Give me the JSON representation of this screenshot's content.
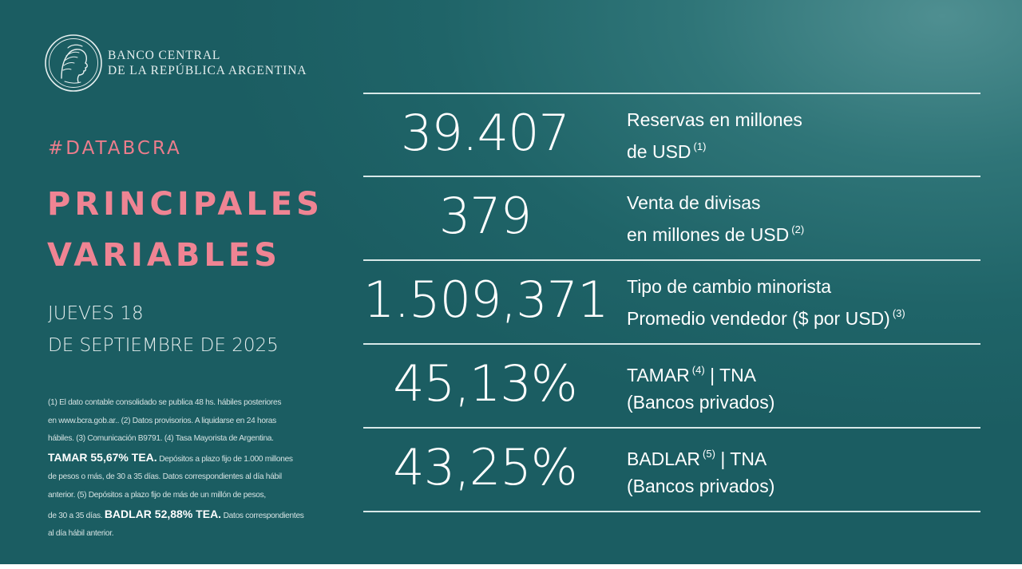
{
  "brand": {
    "line1": "BANCO CENTRAL",
    "line2": "DE LA REPÚBLICA ARGENTINA"
  },
  "hashtag": "#DATABCRA",
  "title": {
    "line1": "PRINCIPALES",
    "line2": "VARIABLES"
  },
  "date": {
    "line1": "JUEVES 18",
    "line2": "DE SEPTIEMBRE DE 2025"
  },
  "indicators": [
    {
      "value": "39.407",
      "label_line1": "Reservas en millones",
      "label_line2": "de USD",
      "note": "(1)",
      "note_line": 2
    },
    {
      "value": "379",
      "label_line1": "Venta de divisas",
      "label_line2": "en millones de USD",
      "note": "(2)",
      "note_line": 2
    },
    {
      "value": "1.509,371",
      "label_line1": "Tipo de cambio minorista",
      "label_line2": "Promedio vendedor ($ por USD)",
      "note": "(3)",
      "note_line": 2
    },
    {
      "value": "45,13%",
      "label_line1_a": "TAMAR",
      "note": "(4)",
      "label_line1_b": "| TNA",
      "label_line2": "(Bancos privados)",
      "note_line": 1
    },
    {
      "value": "43,25%",
      "label_line1_a": "BADLAR",
      "note": "(5)",
      "label_line1_b": "| TNA",
      "label_line2": "(Bancos privados)",
      "note_line": 1
    }
  ],
  "footnotes": {
    "l1": "(1) El dato contable consolidado se publica 48 hs. hábiles posteriores",
    "l2": "en www.bcra.gob.ar.. (2) Datos provisorios. A liquidarse en 24 horas",
    "l3": "hábiles. (3) Comunicación B9791. (4) Tasa Mayorista de Argentina.",
    "l4_bold": "TAMAR 55,67% TEA.",
    "l4_rest": "Depósitos a plazo fijo de 1.000 millones",
    "l5": "de pesos o más, de 30 a 35 días. Datos correspondientes al día hábil",
    "l6": "anterior. (5) Depósitos a plazo fijo de más de un millón de pesos,",
    "l7_pre": "de 30 a 35 días.",
    "l7_bold": "BADLAR 52,88% TEA.",
    "l7_rest": "Datos correspondientes",
    "l8": "al día hábil anterior."
  },
  "colors": {
    "background": "#1f6468",
    "accent_pink": "#ef8493",
    "text": "#ffffff",
    "rule": "#d8e8e8"
  }
}
